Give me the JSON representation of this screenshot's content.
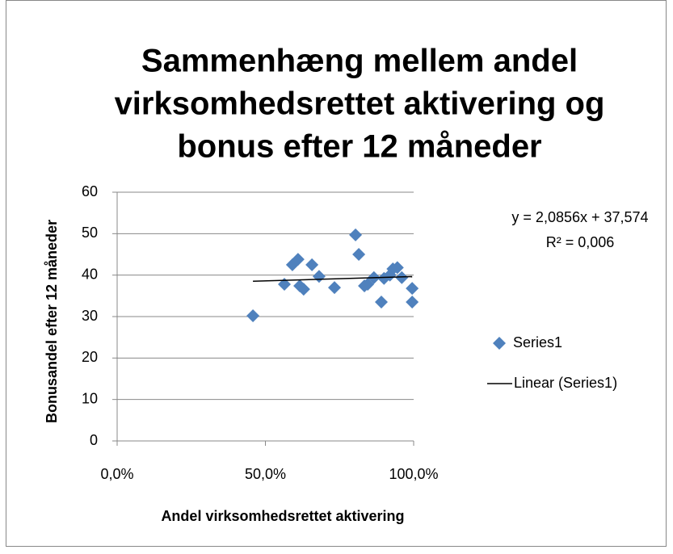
{
  "chart_data": {
    "type": "scatter",
    "title": [
      "Sammenhæng mellem andel",
      "virksomhedsrettet aktivering og",
      "bonus efter 12 måneder"
    ],
    "x_label": "Andel virksomhedsrettet aktivering",
    "y_label": "Bonusandel efter 12 måneder",
    "xlim": [
      0,
      1
    ],
    "xticks": [
      {
        "value": 0,
        "label": "0,0%"
      },
      {
        "value": 0.5,
        "label": "50,0%"
      },
      {
        "value": 1,
        "label": "100,0%"
      }
    ],
    "ylim": [
      0,
      60
    ],
    "yticks": [
      0,
      10,
      20,
      30,
      40,
      50,
      60
    ],
    "grid": true,
    "legend": "right",
    "series": [
      {
        "name": "Series1",
        "color": "#4f81bd",
        "x": [
          0.458,
          0.564,
          0.591,
          0.61,
          0.616,
          0.629,
          0.657,
          0.681,
          0.733,
          0.804,
          0.815,
          0.834,
          0.845,
          0.866,
          0.891,
          0.9,
          0.92,
          0.93,
          0.945,
          0.96,
          0.995,
          0.995
        ],
        "values": [
          30.2,
          37.8,
          42.5,
          43.8,
          37.4,
          36.6,
          42.5,
          39.7,
          37.0,
          49.7,
          45.0,
          37.4,
          37.8,
          39.4,
          33.5,
          39.2,
          40.0,
          41.5,
          41.8,
          39.4,
          36.8,
          33.5
        ]
      }
    ],
    "trendline": {
      "name": "Linear (Series1)",
      "color": "#000000",
      "x": [
        0.458,
        0.995
      ],
      "values": [
        38.53,
        39.65
      ]
    },
    "annotations": [
      "y = 2,0856x + 37,574",
      "R² = 0,006"
    ]
  }
}
